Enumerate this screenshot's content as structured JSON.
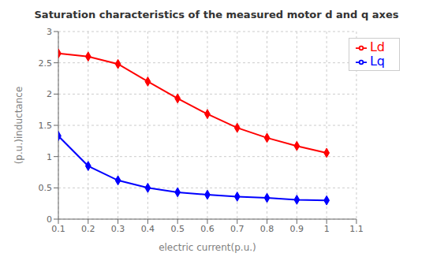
{
  "chart_data": {
    "type": "line",
    "title": "Saturation characteristics of the measured motor d and q axes",
    "xlabel": "electric current(p.u.)",
    "ylabel": "(p.u.)inductance",
    "x": [
      0.1,
      0.2,
      0.3,
      0.4,
      0.5,
      0.6,
      0.7,
      0.8,
      0.9,
      1.0
    ],
    "series": [
      {
        "name": "Ld",
        "color": "#ff0000",
        "marker": "diamond",
        "values": [
          2.65,
          2.6,
          2.48,
          2.2,
          1.93,
          1.68,
          1.46,
          1.3,
          1.17,
          1.06
        ]
      },
      {
        "name": "Lq",
        "color": "#0000ff",
        "marker": "diamond",
        "values": [
          1.33,
          0.85,
          0.62,
          0.5,
          0.43,
          0.39,
          0.36,
          0.34,
          0.31,
          0.3
        ]
      }
    ],
    "xlim": [
      0.1,
      1.1
    ],
    "ylim": [
      0,
      3
    ],
    "xticks": [
      0.1,
      0.2,
      0.3,
      0.4,
      0.5,
      0.6,
      0.7,
      0.8,
      0.9,
      1.0,
      1.1
    ],
    "yticks": [
      0,
      0.5,
      1,
      1.5,
      2,
      2.5,
      3
    ],
    "grid": true,
    "legend": "upper right"
  }
}
